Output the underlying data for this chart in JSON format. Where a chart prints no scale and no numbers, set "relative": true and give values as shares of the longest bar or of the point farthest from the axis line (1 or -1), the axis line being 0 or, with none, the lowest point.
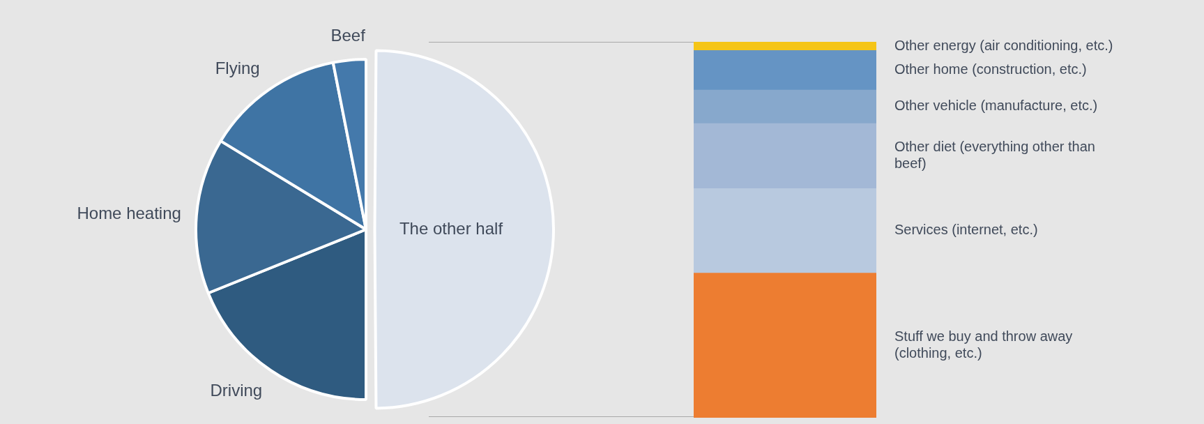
{
  "chart_data": [
    {
      "type": "pie",
      "categories": [
        "The other half",
        "Driving",
        "Home heating",
        "Flying",
        "Beef"
      ],
      "values": [
        50,
        18.9,
        14.8,
        13.2,
        3.1
      ],
      "colors": [
        "#dce3ed",
        "#2f5b80",
        "#3a6891",
        "#3f74a4",
        "#4479ab"
      ]
    },
    {
      "type": "bar",
      "categories": [
        null
      ],
      "stacked": true,
      "relative": true,
      "series": [
        {
          "name": "Stuff we buy and throw away (clothing, etc.)",
          "color": "#ed7d31",
          "values": [
            0.385
          ]
        },
        {
          "name": "Services (internet, etc.)",
          "color": "#b8c9df",
          "values": [
            0.225
          ]
        },
        {
          "name": "Other diet (everything other than beef)",
          "color": "#a3b8d6",
          "values": [
            0.173
          ]
        },
        {
          "name": "Other vehicle (manufacture, etc.)",
          "color": "#87a8cc",
          "values": [
            0.089
          ]
        },
        {
          "name": "Other home (construction, etc.)",
          "color": "#6594c4",
          "values": [
            0.105
          ]
        },
        {
          "name": "Other energy (air conditioning, etc.)",
          "color": "#f5c518",
          "values": [
            0.023
          ]
        }
      ]
    }
  ]
}
